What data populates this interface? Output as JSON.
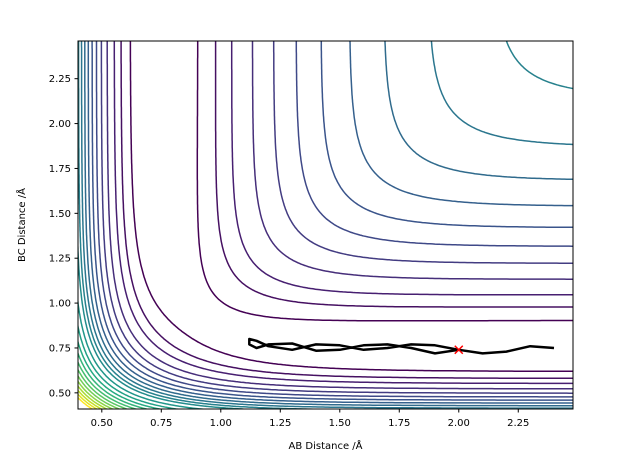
{
  "chart_data": {
    "type": "contour",
    "title": "",
    "xlabel": "AB Distance /Å",
    "ylabel": "BC Distance /Å",
    "xlim": [
      0.4,
      2.48
    ],
    "ylim": [
      0.41,
      2.46
    ],
    "xticks": [
      "0.50",
      "0.75",
      "1.00",
      "1.25",
      "1.50",
      "1.75",
      "2.00",
      "2.25"
    ],
    "yticks": [
      "0.50",
      "0.75",
      "1.00",
      "1.25",
      "1.50",
      "1.75",
      "2.00",
      "2.25"
    ],
    "grid": false,
    "colormap": "viridis",
    "contour_levels": [
      -4.4,
      -4.1,
      -3.8,
      -3.4,
      -3.0,
      -2.6,
      -2.2,
      -1.8,
      -1.4,
      -1.0,
      -0.6,
      -0.2,
      0.4,
      1.0,
      1.6,
      2.2,
      2.8,
      3.4,
      4.0,
      4.6,
      5.2,
      5.8,
      6.4,
      7.0
    ],
    "trajectory": {
      "color": "#000000",
      "points": [
        [
          2.0,
          0.74
        ],
        [
          1.9,
          0.72
        ],
        [
          1.8,
          0.75
        ],
        [
          1.7,
          0.77
        ],
        [
          1.6,
          0.765
        ],
        [
          1.5,
          0.74
        ],
        [
          1.4,
          0.735
        ],
        [
          1.3,
          0.775
        ],
        [
          1.2,
          0.77
        ],
        [
          1.15,
          0.75
        ],
        [
          1.12,
          0.77
        ],
        [
          1.12,
          0.8
        ],
        [
          1.15,
          0.79
        ],
        [
          1.2,
          0.76
        ],
        [
          1.3,
          0.74
        ],
        [
          1.4,
          0.77
        ],
        [
          1.5,
          0.765
        ],
        [
          1.6,
          0.74
        ],
        [
          1.7,
          0.75
        ],
        [
          1.8,
          0.77
        ],
        [
          1.9,
          0.765
        ],
        [
          2.0,
          0.74
        ],
        [
          2.1,
          0.72
        ],
        [
          2.2,
          0.73
        ],
        [
          2.3,
          0.76
        ],
        [
          2.35,
          0.755
        ],
        [
          2.4,
          0.75
        ]
      ]
    },
    "marker": {
      "x": 2.0,
      "y": 0.74,
      "symbol": "x",
      "color": "#ff0000"
    }
  }
}
